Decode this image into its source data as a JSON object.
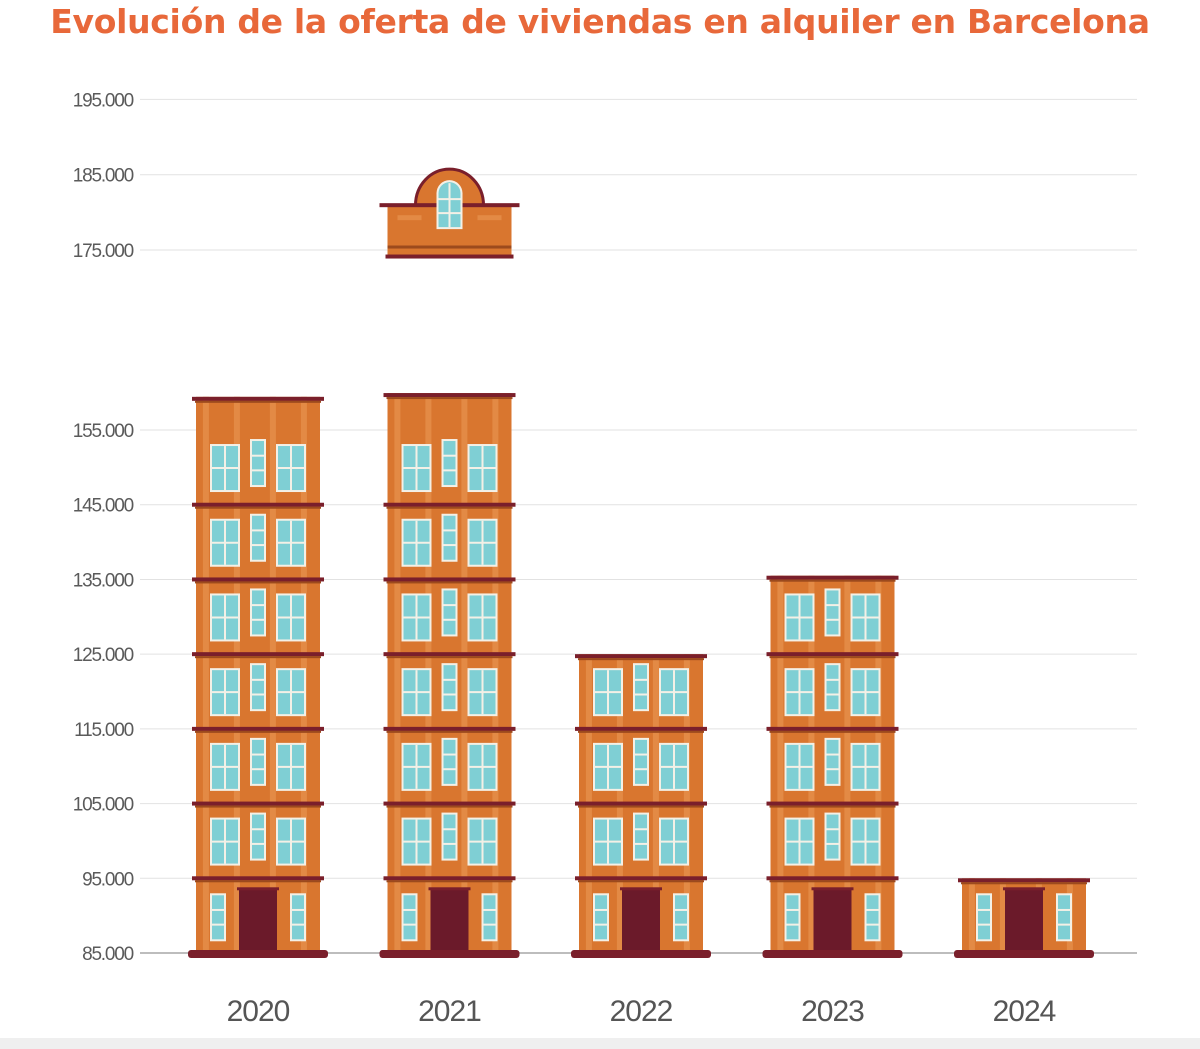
{
  "colors": {
    "title": "#e8683a",
    "brick": "#d9762f",
    "brick_light": "#e38a45",
    "ledge": "#9c4a1d",
    "ledge_dark": "#7a1f2b",
    "window": "#7fcfd4",
    "window_frame": "#f4f0e6",
    "door": "#6b1a2a",
    "grid": "#e2e2e2",
    "axis": "#bdbdbd"
  },
  "chart_data": {
    "type": "bar",
    "title": "Evolución de la oferta de viviendas en alquiler en Barcelona",
    "categories": [
      "2020",
      "2021",
      "2022",
      "2023",
      "2024"
    ],
    "values": [
      155500,
      156000,
      125000,
      135500,
      95000
    ],
    "roof_annotation": {
      "category": "2021",
      "value_top": 186000,
      "value_bottom": 174000
    },
    "yticks": [
      "195.000",
      "185.000",
      "175.000",
      "155.000",
      "145.000",
      "135.000",
      "125.000",
      "115.000",
      "105.000",
      "95.000",
      "85.000"
    ],
    "ytick_values": [
      195000,
      185000,
      175000,
      155000,
      145000,
      135000,
      125000,
      115000,
      105000,
      95000,
      85000
    ],
    "ylim": [
      85000,
      195000
    ],
    "axis_break": [
      157000,
      175000
    ],
    "grid": true,
    "legend": "none"
  }
}
